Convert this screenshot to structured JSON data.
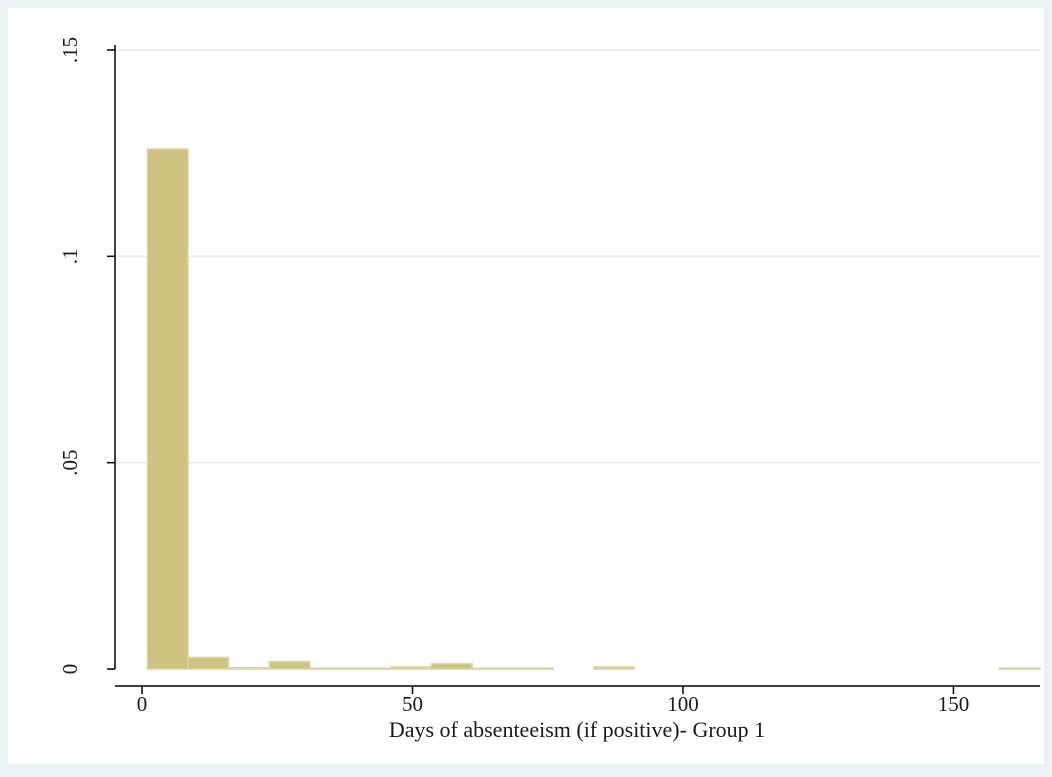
{
  "chart_data": {
    "type": "bar",
    "subtype": "histogram",
    "title": "",
    "xlabel": "Days of absenteeism (if positive)- Group 1",
    "ylabel": "",
    "xlim": [
      -5,
      166
    ],
    "ylim": [
      0,
      0.15
    ],
    "grid": true,
    "legend": "none",
    "x_ticks": [
      {
        "value": 0,
        "label": "0"
      },
      {
        "value": 50,
        "label": "50"
      },
      {
        "value": 100,
        "label": "100"
      },
      {
        "value": 150,
        "label": "150"
      }
    ],
    "y_ticks": [
      {
        "value": 0,
        "label": "0"
      },
      {
        "value": 0.05,
        "label": ".05"
      },
      {
        "value": 0.1,
        "label": ".1"
      },
      {
        "value": 0.15,
        "label": ".15"
      }
    ],
    "bins": [
      {
        "start": 1,
        "end": 8.5,
        "density": 0.126
      },
      {
        "start": 8.5,
        "end": 16,
        "density": 0.0028
      },
      {
        "start": 16,
        "end": 23.5,
        "density": 0.0003
      },
      {
        "start": 23.5,
        "end": 31,
        "density": 0.0018
      },
      {
        "start": 31,
        "end": 38.5,
        "density": 0.0002
      },
      {
        "start": 38.5,
        "end": 46,
        "density": 0.0002
      },
      {
        "start": 46,
        "end": 53.5,
        "density": 0.0005
      },
      {
        "start": 53.5,
        "end": 61,
        "density": 0.0013
      },
      {
        "start": 61,
        "end": 68.5,
        "density": 0.0002
      },
      {
        "start": 68.5,
        "end": 76,
        "density": 0.0002
      },
      {
        "start": 83.5,
        "end": 91,
        "density": 0.0005
      },
      {
        "start": 158.5,
        "end": 166,
        "density": 0.0002
      }
    ],
    "colors": {
      "bar_fill": "#cdc27f",
      "bar_stroke": "#ddd6a4",
      "plot_background": "#ffffff",
      "outer_background": "#eaf2f3",
      "gridline": "#e6eeef",
      "axis": "#000000"
    }
  }
}
